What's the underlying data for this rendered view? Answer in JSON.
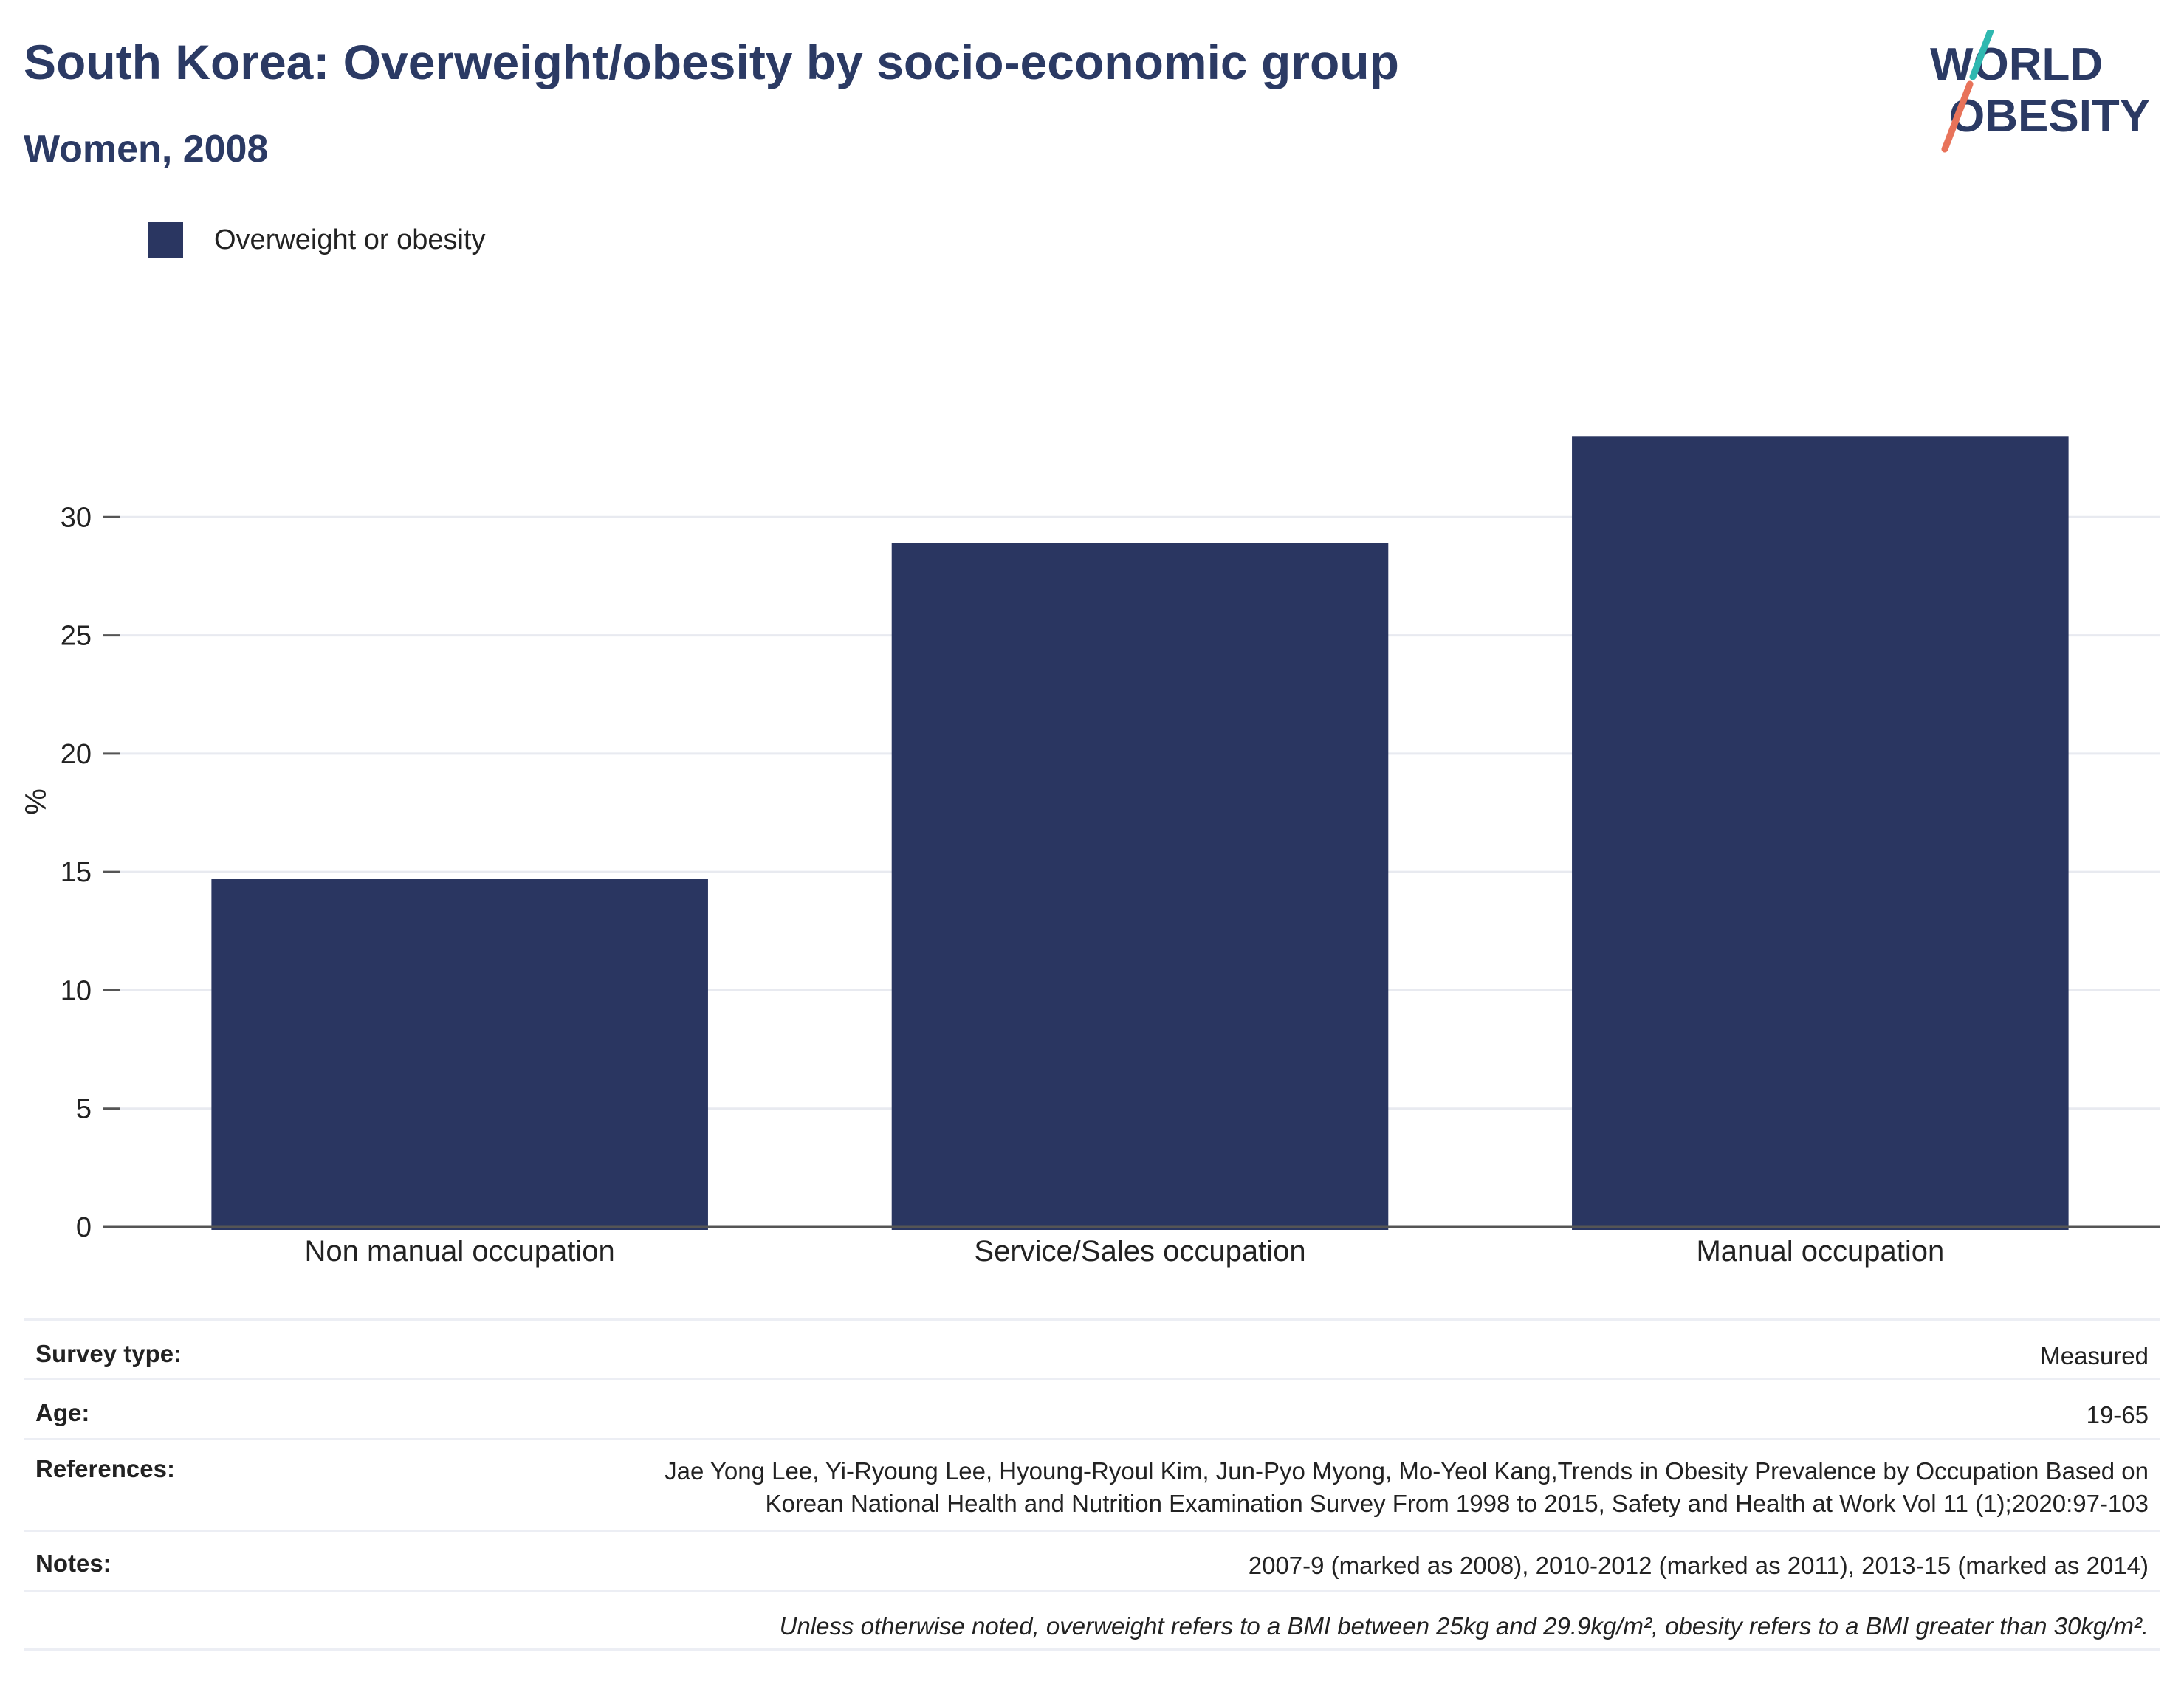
{
  "header": {
    "title": "South Korea: Overweight/obesity by socio-economic group",
    "subtitle": "Women, 2008"
  },
  "logo": {
    "line1": "WORLD",
    "line2": "OBESITY",
    "colors": {
      "text": "#2b3a64",
      "slash_top": "#2fb8b0",
      "slash_bottom": "#e8735a"
    }
  },
  "legend": {
    "label": "Overweight or obesity",
    "color": "#2a3661"
  },
  "chart_data": {
    "type": "bar",
    "categories": [
      "Non manual occupation",
      "Service/Sales occupation",
      "Manual occupation"
    ],
    "series": [
      {
        "name": "Overweight or obesity",
        "values": [
          14.7,
          28.9,
          33.4
        ],
        "color": "#2a3661"
      }
    ],
    "ylabel": "%",
    "ylim": [
      0,
      35
    ],
    "yticks": [
      0,
      5,
      10,
      15,
      20,
      25,
      30
    ],
    "grid": true,
    "legend_position": "top-left"
  },
  "info": {
    "survey_type": {
      "label": "Survey type:",
      "value": "Measured"
    },
    "age": {
      "label": "Age:",
      "value": "19-65"
    },
    "references": {
      "label": "References:",
      "value_line1": "Jae Yong Lee, Yi-Ryoung Lee, Hyoung-Ryoul Kim, Jun-Pyo Myong, Mo-Yeol Kang,Trends in Obesity Prevalence by Occupation Based on",
      "value_line2": "Korean National Health and Nutrition Examination Survey From 1998 to 2015, Safety and Health at Work Vol 11 (1);2020:97-103"
    },
    "notes": {
      "label": "Notes:",
      "value": "2007-9 (marked as 2008), 2010-2012 (marked as 2011), 2013-15 (marked as 2014)"
    },
    "definition": "Unless otherwise noted, overweight refers to a BMI between 25kg and 29.9kg/m², obesity refers to a BMI greater than 30kg/m²."
  }
}
